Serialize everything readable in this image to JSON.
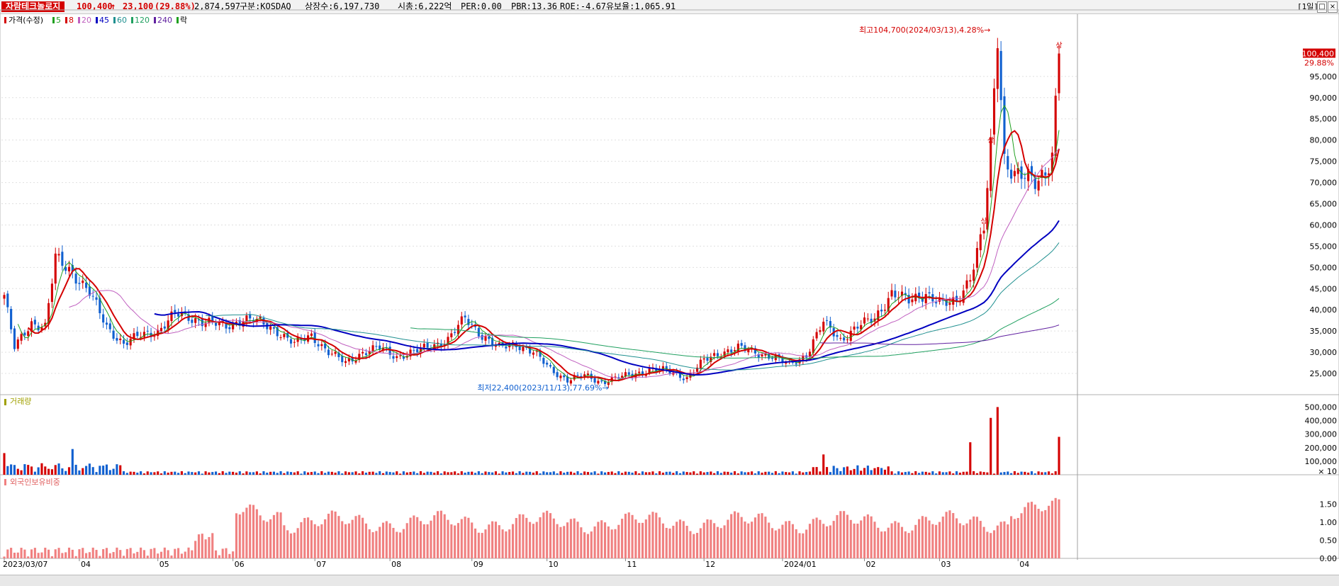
{
  "header": {
    "stock_name": "자람테크놀로지",
    "price": "100,400",
    "change": "23,100",
    "change_pct": "(29.88%)",
    "volume": "2,874,597",
    "market": "구분:KOSDAQ",
    "shares": "상장수:6,197,730",
    "mktcap": "시총:6,222억",
    "per": "PER:0.00",
    "pbr": "PBR:13.36",
    "roe": "ROE:-4.67",
    "retention": "유보율:1,065.91",
    "period_button": "[1일]"
  },
  "legend": {
    "price_label": "가격(수정)",
    "ma_labels": [
      "5",
      "8",
      "20",
      "45",
      "60",
      "120",
      "240"
    ],
    "ma_colors": [
      "#1fa01f",
      "#d40000",
      "#c060c0",
      "#0000c0",
      "#209090",
      "#20a060",
      "#6020a0"
    ],
    "extra_label": "락",
    "volume_label": "거래량",
    "foreign_label": "외국인보유비중"
  },
  "colors": {
    "up": "#d40000",
    "down": "#1060d0",
    "foreign_bar": "#f08080",
    "grid": "#e0e0e0"
  },
  "annotations": {
    "high": "최고104,700(2024/03/13),4.28%",
    "low": "최저22,400(2023/11/13),77.69%",
    "price_badge": "100,400",
    "pct_badge": "29.88%",
    "limit_up_mark": "상"
  },
  "chart_data": [
    {
      "type": "candlestick",
      "title": "가격(수정)",
      "ylim": [
        20000,
        108000
      ],
      "y_ticks": [
        "25,000",
        "30,000",
        "35,000",
        "40,000",
        "45,000",
        "50,000",
        "55,000",
        "60,000",
        "65,000",
        "70,000",
        "75,000",
        "80,000",
        "85,000",
        "90,000",
        "95,000"
      ],
      "x_labels": [
        "2023/03/07",
        "04",
        "05",
        "06",
        "07",
        "08",
        "09",
        "10",
        "11",
        "12",
        "2024/01",
        "02",
        "03",
        "04"
      ],
      "anchors": [
        [
          0,
          43500
        ],
        [
          3,
          31000
        ],
        [
          8,
          37000
        ],
        [
          12,
          36000
        ],
        [
          15,
          52000
        ],
        [
          20,
          49000
        ],
        [
          25,
          44000
        ],
        [
          30,
          36000
        ],
        [
          35,
          32000
        ],
        [
          40,
          34000
        ],
        [
          45,
          35000
        ],
        [
          50,
          39000
        ],
        [
          55,
          38000
        ],
        [
          60,
          37000
        ],
        [
          65,
          36000
        ],
        [
          70,
          38000
        ],
        [
          75,
          37000
        ],
        [
          80,
          35000
        ],
        [
          85,
          32000
        ],
        [
          90,
          34000
        ],
        [
          95,
          30000
        ],
        [
          100,
          27500
        ],
        [
          105,
          30000
        ],
        [
          110,
          31000
        ],
        [
          115,
          29000
        ],
        [
          120,
          30000
        ],
        [
          125,
          31500
        ],
        [
          130,
          33000
        ],
        [
          135,
          38000
        ],
        [
          140,
          34000
        ],
        [
          145,
          31000
        ],
        [
          150,
          32000
        ],
        [
          155,
          30000
        ],
        [
          160,
          26000
        ],
        [
          165,
          23500
        ],
        [
          170,
          24500
        ],
        [
          175,
          23000
        ],
        [
          180,
          24000
        ],
        [
          185,
          25000
        ],
        [
          190,
          26000
        ],
        [
          195,
          25500
        ],
        [
          200,
          24000
        ],
        [
          205,
          28000
        ],
        [
          210,
          30000
        ],
        [
          215,
          31000
        ],
        [
          220,
          30000
        ],
        [
          225,
          29000
        ],
        [
          230,
          27000
        ],
        [
          235,
          29500
        ],
        [
          240,
          37000
        ],
        [
          245,
          33000
        ],
        [
          250,
          36000
        ],
        [
          255,
          38000
        ],
        [
          260,
          44000
        ],
        [
          265,
          42000
        ],
        [
          270,
          44000
        ],
        [
          275,
          41000
        ],
        [
          279,
          42000
        ],
        [
          283,
          48000
        ],
        [
          287,
          59000
        ],
        [
          289,
          78000
        ],
        [
          291,
          104700
        ],
        [
          293,
          76000
        ],
        [
          296,
          72000
        ],
        [
          299,
          71000
        ],
        [
          302,
          70000
        ],
        [
          305,
          73000
        ],
        [
          307,
          77000
        ],
        [
          309,
          100400
        ]
      ],
      "total_days": 310
    },
    {
      "type": "bar",
      "title": "거래량",
      "unit": "× 10",
      "y_ticks": [
        "100,000",
        "200,000",
        "300,000",
        "400,000",
        "500,000"
      ],
      "ylim": [
        0,
        560000
      ]
    },
    {
      "type": "bar",
      "title": "외국인보유비중",
      "y_ticks": [
        "0.00",
        "0.50",
        "1.00",
        "1.50"
      ],
      "ylim": [
        0,
        2.0
      ]
    }
  ]
}
